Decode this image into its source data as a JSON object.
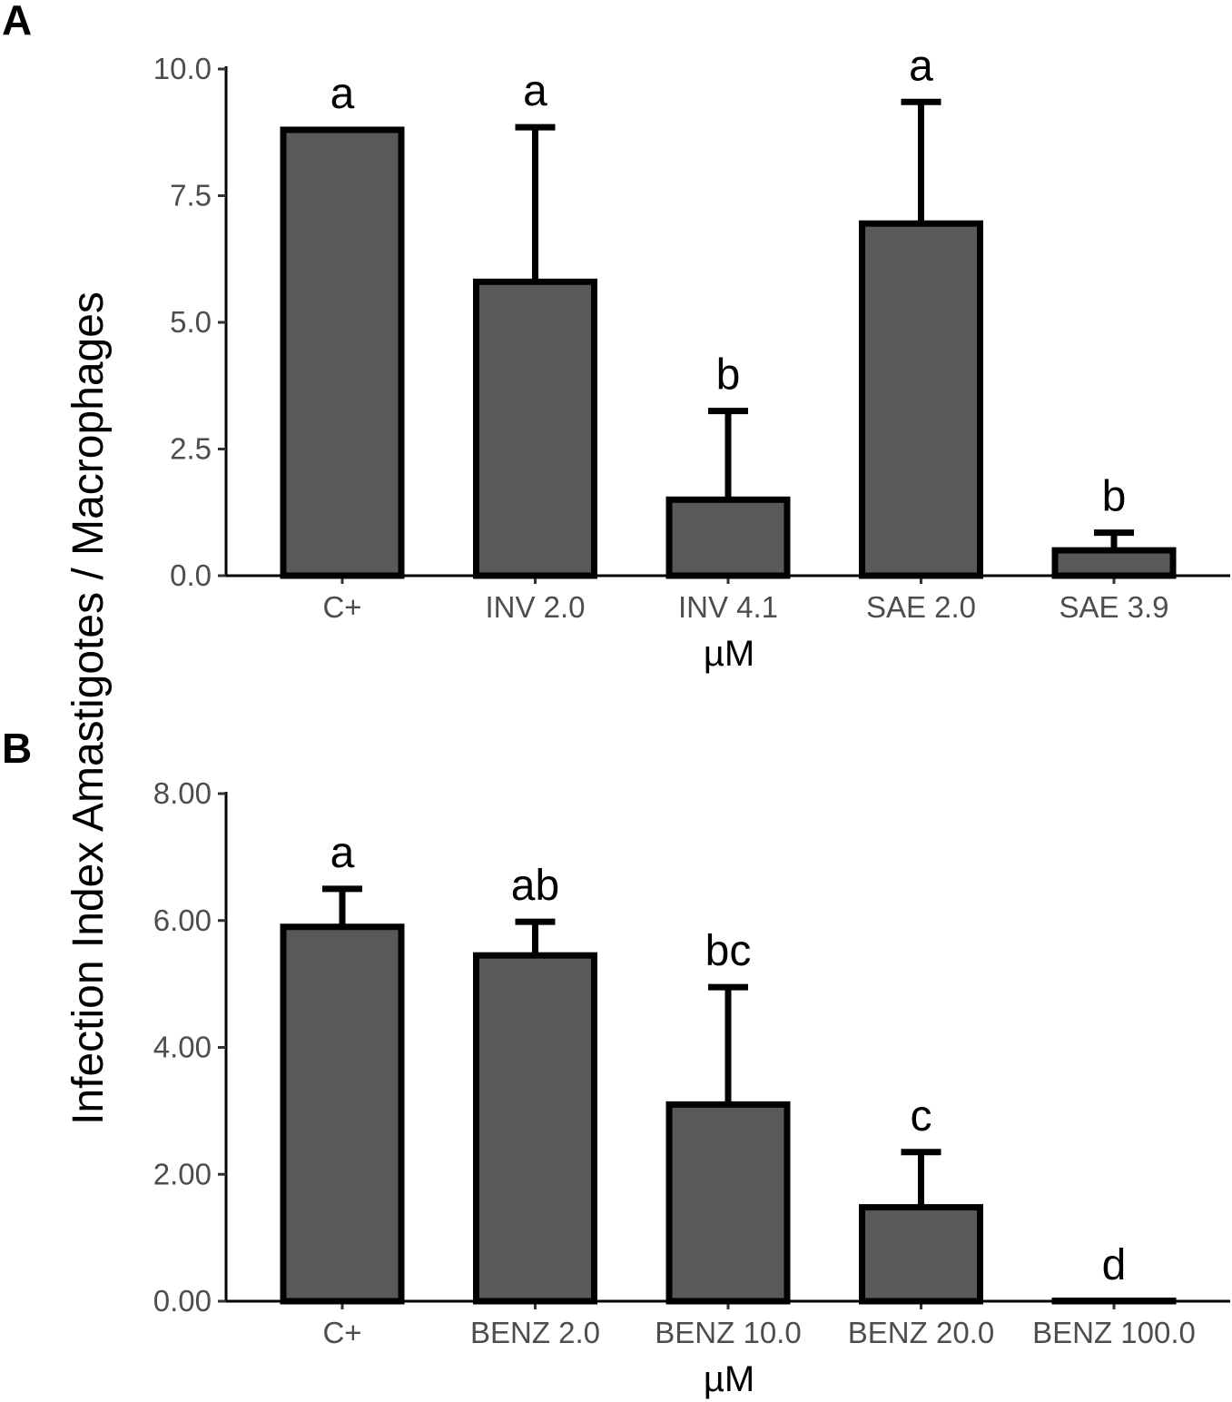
{
  "figure": {
    "ylabel": "Infection Index Amastigotes / Macrophages"
  },
  "chart_data": [
    {
      "panel": "A",
      "type": "bar",
      "title": "",
      "xlabel": "µM",
      "ylabel": "Infection Index Amastigotes / Macrophages",
      "categories": [
        "C+",
        "INV 2.0",
        "INV 4.1",
        "SAE 2.0",
        "SAE 3.9"
      ],
      "values": [
        8.8,
        5.8,
        1.5,
        6.95,
        0.5
      ],
      "error_upper": [
        8.8,
        8.85,
        3.25,
        9.35,
        0.85
      ],
      "significance": [
        "a",
        "a",
        "b",
        "a",
        "b"
      ],
      "ylim": [
        0,
        10
      ],
      "yticks": [
        0,
        2.5,
        5,
        7.5,
        10
      ],
      "ytick_labels": [
        "0.0",
        "2.5",
        "5.0",
        "7.5",
        "10.0"
      ],
      "grid": false
    },
    {
      "panel": "B",
      "type": "bar",
      "title": "",
      "xlabel": "µM",
      "ylabel": "Infection Index Amastigotes / Macrophages",
      "categories": [
        "C+",
        "BENZ 2.0",
        "BENZ 10.0",
        "BENZ 20.0",
        "BENZ 100.0"
      ],
      "values": [
        5.9,
        5.45,
        3.1,
        1.48,
        0.0
      ],
      "error_upper": [
        6.5,
        5.98,
        4.95,
        2.35,
        0.0
      ],
      "significance": [
        "a",
        "ab",
        "bc",
        "c",
        "d"
      ],
      "ylim": [
        0,
        8
      ],
      "yticks": [
        0,
        2,
        4,
        6,
        8
      ],
      "ytick_labels": [
        "0.00",
        "2.00",
        "4.00",
        "6.00",
        "8.00"
      ],
      "grid": false
    }
  ]
}
